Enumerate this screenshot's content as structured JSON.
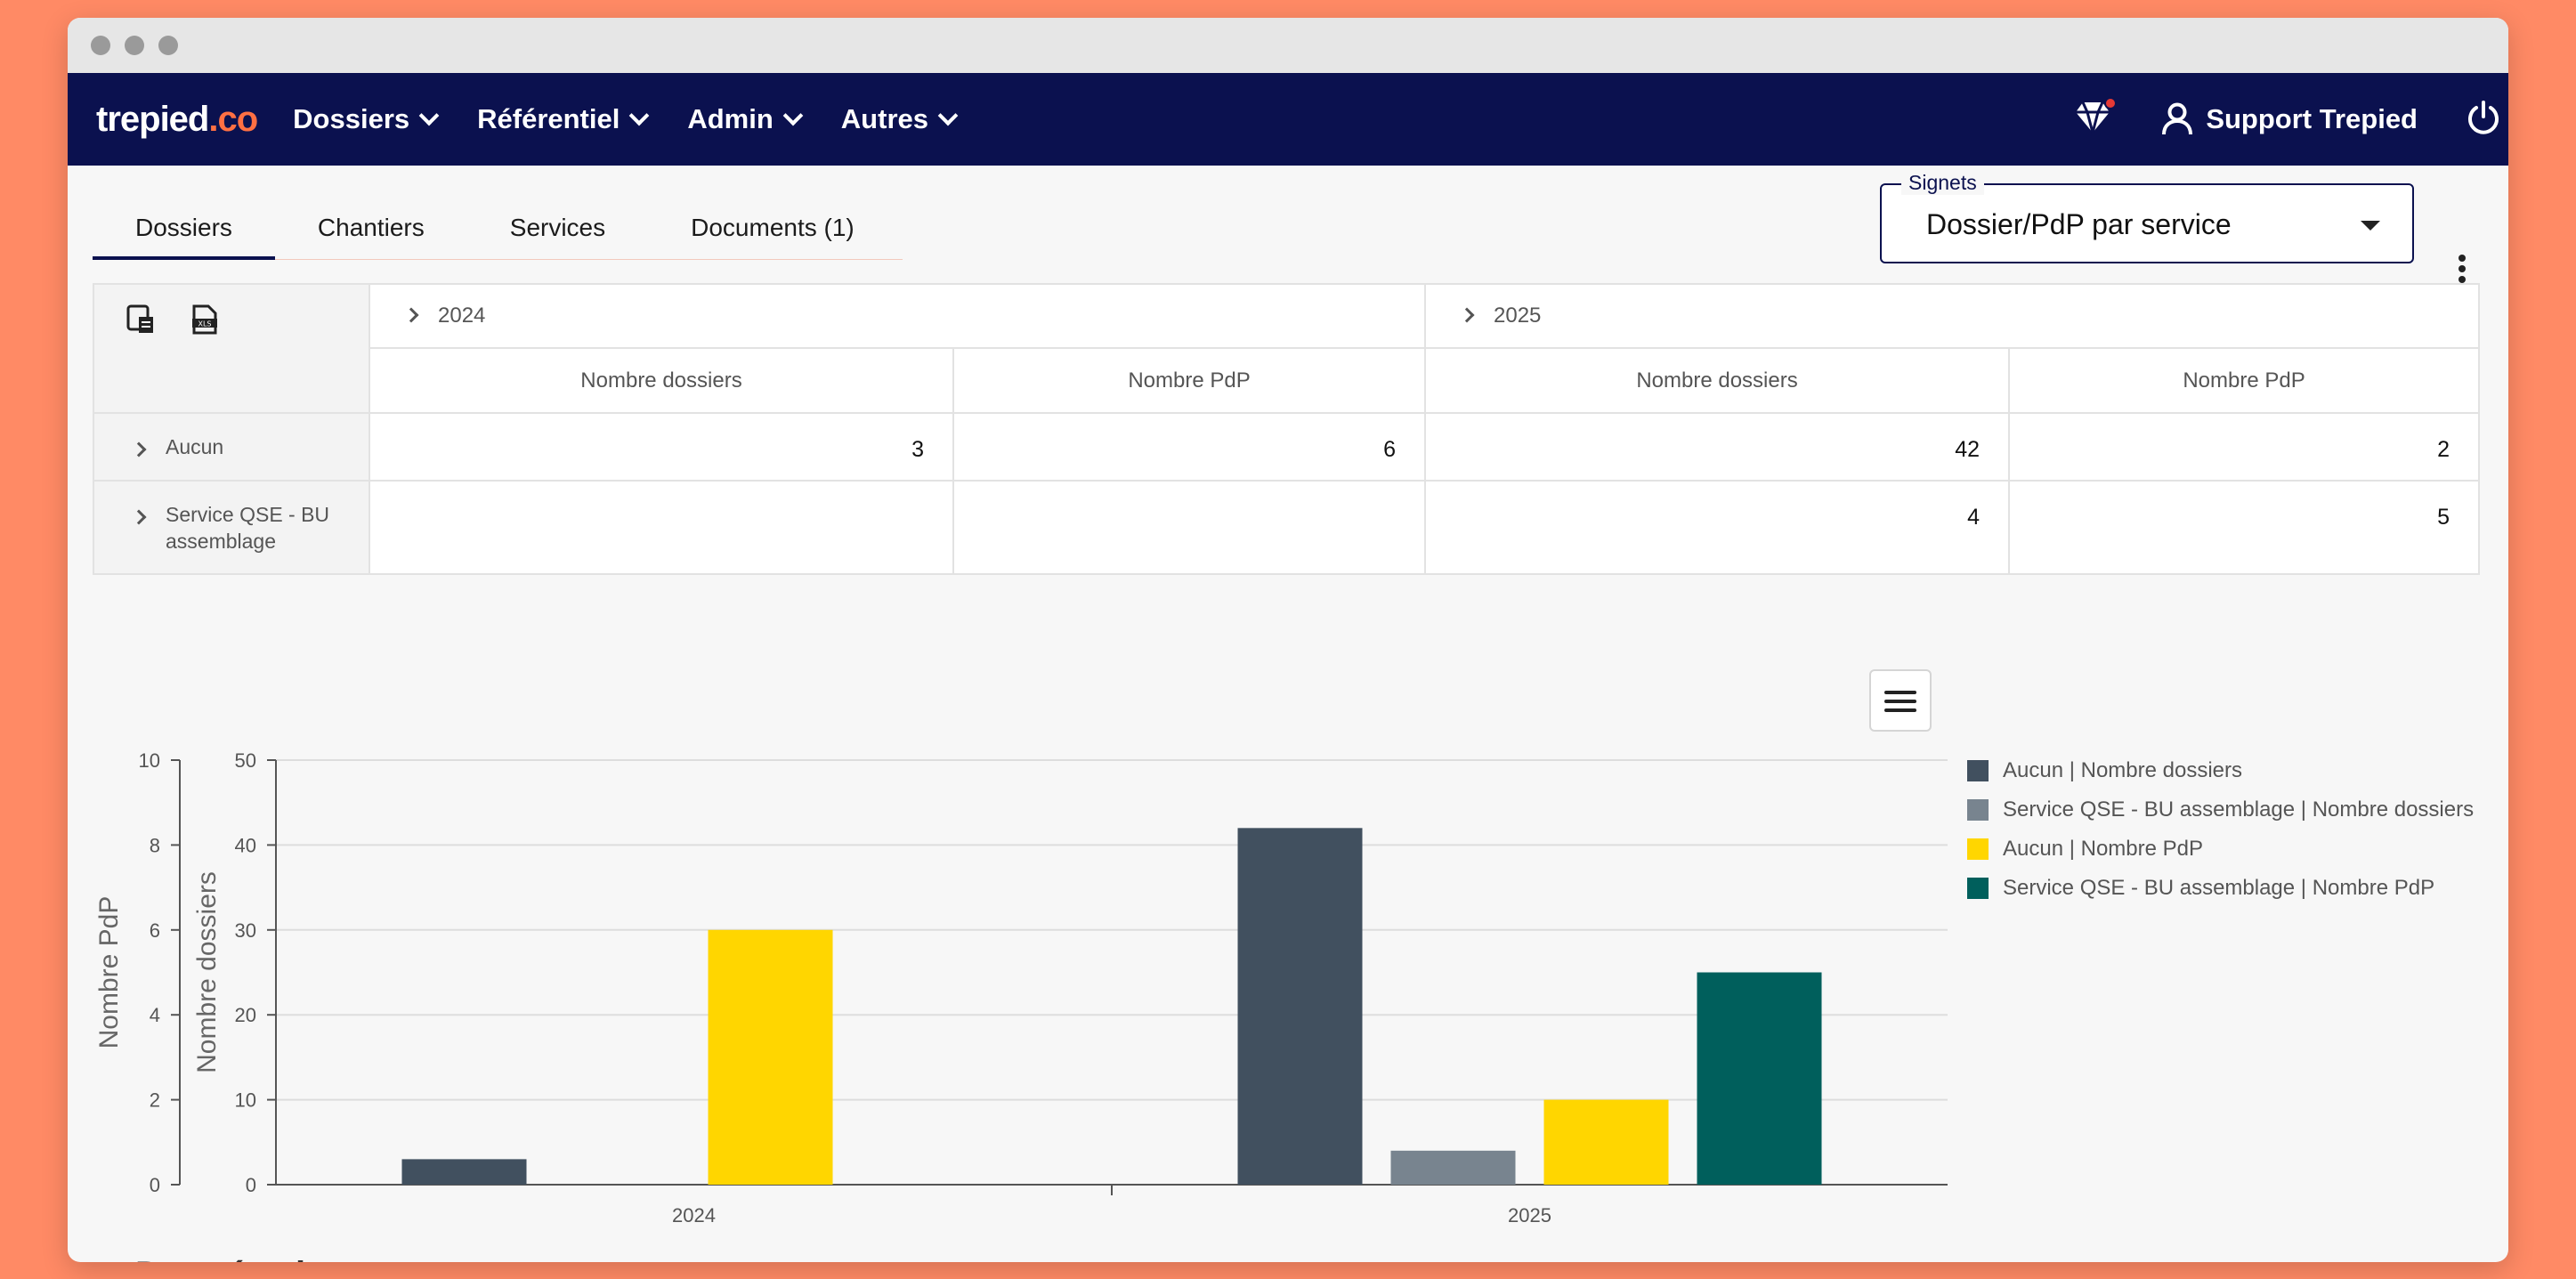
{
  "brand": {
    "logo_main": "trepied",
    "logo_suffix": ".co",
    "accent": "#ff7043",
    "nav_bg": "#0b114f"
  },
  "nav": {
    "items": [
      {
        "label": "Dossiers"
      },
      {
        "label": "Référentiel"
      },
      {
        "label": "Admin"
      },
      {
        "label": "Autres"
      }
    ],
    "user": "Support Trepied",
    "icons": [
      "diamond-icon",
      "user-icon",
      "power-icon"
    ]
  },
  "tabs": [
    {
      "label": "Dossiers",
      "active": true
    },
    {
      "label": "Chantiers",
      "active": false
    },
    {
      "label": "Services",
      "active": false
    },
    {
      "label": "Documents (1)",
      "active": false
    }
  ],
  "signets": {
    "label": "Signets",
    "value": "Dossier/PdP par service"
  },
  "pivot": {
    "years": [
      "2024",
      "2025"
    ],
    "measures": [
      "Nombre dossiers",
      "Nombre PdP"
    ],
    "rows": [
      {
        "label": "Aucun",
        "values": [
          "3",
          "6",
          "42",
          "2"
        ]
      },
      {
        "label": "Service QSE - BU assemblage",
        "values": [
          "",
          "",
          "4",
          "5"
        ]
      }
    ]
  },
  "chart_data": {
    "type": "bar",
    "categories": [
      "2024",
      "2025"
    ],
    "left_axis": {
      "label": "Nombre PdP",
      "ticks": [
        "0",
        "2",
        "4",
        "6",
        "8",
        "10"
      ],
      "range": [
        0,
        10
      ]
    },
    "right_axis": {
      "label": "Nombre dossiers",
      "ticks": [
        "0",
        "10",
        "20",
        "30",
        "40",
        "50"
      ],
      "range": [
        0,
        50
      ]
    },
    "series": [
      {
        "name": "Aucun | Nombre dossiers",
        "axis": "dossiers",
        "color": "#41505f",
        "values": [
          3,
          42
        ]
      },
      {
        "name": "Service QSE - BU assemblage | Nombre dossiers",
        "axis": "dossiers",
        "color": "#78848f",
        "values": [
          0,
          4
        ]
      },
      {
        "name": "Aucun | Nombre PdP",
        "axis": "pdp",
        "color": "#ffd600",
        "values": [
          6,
          2
        ]
      },
      {
        "name": "Service QSE - BU assemblage | Nombre PdP",
        "axis": "pdp",
        "color": "#005f5c",
        "values": [
          0,
          5
        ]
      }
    ],
    "grid": true,
    "legend_position": "right"
  },
  "raw_section": {
    "title": "Données brutes"
  }
}
